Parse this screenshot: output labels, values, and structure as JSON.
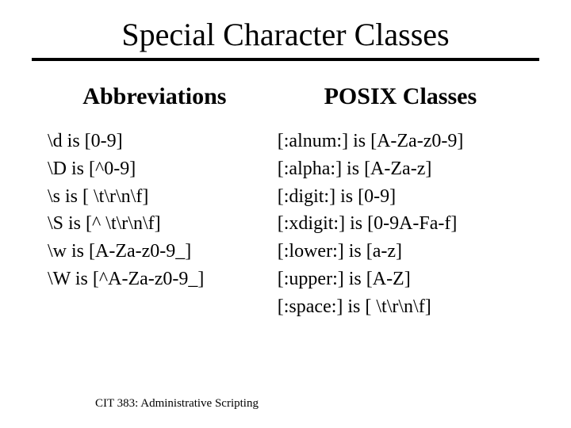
{
  "title": "Special Character Classes",
  "left": {
    "header": "Abbreviations",
    "items": [
      "\\d is [0-9]",
      "\\D is [^0-9]",
      "\\s is [ \\t\\r\\n\\f]",
      "\\S is [^ \\t\\r\\n\\f]",
      "\\w is [A-Za-z0-9_]",
      "\\W is [^A-Za-z0-9_]"
    ]
  },
  "right": {
    "header": "POSIX Classes",
    "items": [
      "[:alnum:] is [A-Za-z0-9]",
      "[:alpha:] is [A-Za-z]",
      "[:digit:] is [0-9]",
      "[:xdigit:] is [0-9A-Fa-f]",
      "[:lower:] is [a-z]",
      "[:upper:] is [A-Z]",
      "[:space:] is [ \\t\\r\\n\\f]"
    ]
  },
  "footer": "CIT 383: Administrative Scripting",
  "style": {
    "background": "#ffffff",
    "text_color": "#000000",
    "title_fontsize": 40,
    "header_fontsize": 30,
    "item_fontsize": 24,
    "footer_fontsize": 15,
    "divider_thickness": 4
  }
}
